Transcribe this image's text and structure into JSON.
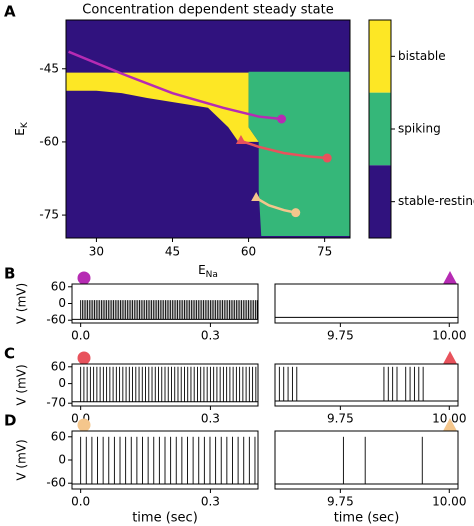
{
  "chart_data": [
    {
      "type": "heatmap",
      "panel": "A",
      "title": "Concentration dependent steady state",
      "xlabel": {
        "main": "E",
        "sub": "Na"
      },
      "ylabel": {
        "main": "E",
        "sub": "K"
      },
      "xlim": [
        24,
        80
      ],
      "ylim": [
        -79.7,
        -35
      ],
      "xticks": [
        30,
        45,
        60,
        75
      ],
      "yticks": [
        -45,
        -60,
        -75
      ],
      "background": "#30127e",
      "regions": [
        {
          "color": "#fde725",
          "points": [
            [
              24,
              -45.8
            ],
            [
              60,
              -45.8
            ],
            [
              60,
              -57
            ],
            [
              62,
              -60
            ],
            [
              58,
              -60
            ],
            [
              56,
              -57
            ],
            [
              54,
              -55
            ],
            [
              52,
              -53
            ],
            [
              46,
              -52
            ],
            [
              40,
              -51
            ],
            [
              35,
              -50
            ],
            [
              30,
              -49.5
            ],
            [
              24,
              -49.5
            ]
          ]
        },
        {
          "color": "#35b779",
          "points": [
            [
              60,
              -45.6
            ],
            [
              80,
              -45.6
            ],
            [
              80,
              -79.3
            ],
            [
              62.5,
              -79.3
            ],
            [
              62,
              -70
            ],
            [
              62,
              -60
            ],
            [
              60,
              -57
            ]
          ]
        }
      ],
      "curves": [
        {
          "color": "#b62bb3",
          "x": [
            24.5,
            35,
            45,
            55,
            62,
            66.5
          ],
          "y": [
            -41.5,
            -46,
            -50,
            -53,
            -54.8,
            -55.3
          ]
        },
        {
          "color": "#e8525c",
          "x": [
            58.5,
            62,
            67,
            72,
            75.5
          ],
          "y": [
            -59.8,
            -61,
            -62.3,
            -63,
            -63.3
          ]
        },
        {
          "color": "#f4c68c",
          "x": [
            61.5,
            64,
            67,
            69.3
          ],
          "y": [
            -71.5,
            -73,
            -74,
            -74.5
          ]
        }
      ],
      "colorbar": [
        {
          "label": "bistable",
          "color": "#fde725"
        },
        {
          "label": "spiking",
          "color": "#35b779"
        },
        {
          "label": "stable-resting",
          "color": "#30127e"
        }
      ]
    },
    {
      "type": "traces",
      "ylabel": "V (mV)",
      "xlabel": "time (sec)",
      "rows": [
        {
          "panel": "B",
          "color": "#b62bb3",
          "ylim": [
            -70,
            70
          ],
          "yticks": [
            60,
            0,
            -60
          ],
          "left": {
            "xlim": [
              -0.02,
              0.41
            ],
            "xticks": [
              {
                "value": 0,
                "label": "0.0"
              },
              0.3
            ],
            "baseline": -57,
            "peak": 12,
            "spike_start": 0.0,
            "spike_period": 0.004
          },
          "right": {
            "xlim": [
              9.6,
              10.02
            ],
            "xticks": [
              9.75,
              {
                "value": 10,
                "label": "10.00"
              }
            ],
            "baseline": -50
          }
        },
        {
          "panel": "C",
          "color": "#e8525c",
          "ylim": [
            -80,
            70
          ],
          "yticks": [
            60,
            0,
            -70
          ],
          "left": {
            "xlim": [
              -0.02,
              0.41
            ],
            "xticks": [
              {
                "value": 0,
                "label": "0.0"
              },
              0.3
            ],
            "baseline": -65,
            "peak": 60,
            "spike_start": 0.0,
            "spike_period": 0.0075
          },
          "right": {
            "xlim": [
              9.6,
              10.02
            ],
            "xticks": [
              9.75,
              {
                "value": 10,
                "label": "10.00"
              }
            ],
            "baseline": -62,
            "peak": 60,
            "spike_times": [
              9.61,
              9.62,
              9.63,
              9.64,
              9.65,
              9.85,
              9.86,
              9.87,
              9.88,
              9.9,
              9.91,
              9.92,
              9.93,
              9.94
            ]
          }
        },
        {
          "panel": "D",
          "color": "#f4c68c",
          "ylim": [
            -75,
            75
          ],
          "yticks": [
            60,
            0,
            -60
          ],
          "left": {
            "xlim": [
              -0.02,
              0.41
            ],
            "xticks": [
              {
                "value": 0,
                "label": "0.0"
              },
              0.3
            ],
            "baseline": -62,
            "peak": 60,
            "spike_start": 0.0,
            "spike_period": 0.013
          },
          "right": {
            "xlim": [
              9.6,
              10.02
            ],
            "xticks": [
              9.75,
              {
                "value": 10,
                "label": "10.00"
              }
            ],
            "baseline": -62,
            "peak": 60,
            "spike_times": [
              9.757,
              9.807,
              9.938
            ]
          }
        }
      ]
    }
  ]
}
